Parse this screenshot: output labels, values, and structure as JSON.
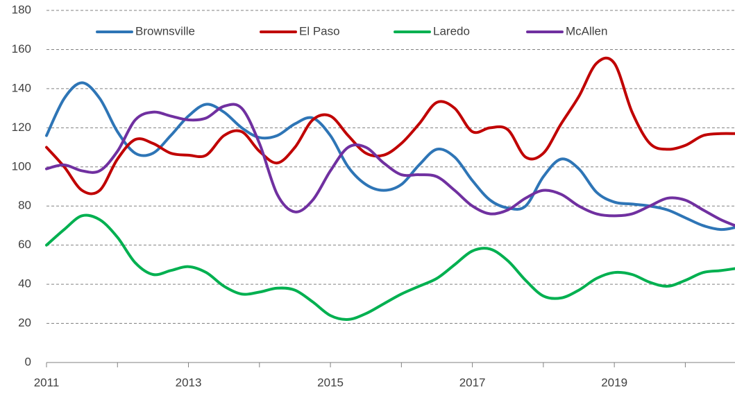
{
  "chart_data": {
    "type": "line",
    "x": [
      2011,
      2011.25,
      2011.5,
      2011.75,
      2012,
      2012.25,
      2012.5,
      2012.75,
      2013,
      2013.25,
      2013.5,
      2013.75,
      2014,
      2014.25,
      2014.5,
      2014.75,
      2015,
      2015.25,
      2015.5,
      2015.75,
      2016,
      2016.25,
      2016.5,
      2016.75,
      2017,
      2017.25,
      2017.5,
      2017.75,
      2018,
      2018.25,
      2018.5,
      2018.75,
      2019,
      2019.25,
      2019.5,
      2019.75,
      2020,
      2020.25,
      2020.5,
      2020.7
    ],
    "series": [
      {
        "name": "Brownsville",
        "color": "#2e75b6",
        "values": [
          116,
          135,
          143,
          135,
          118,
          107,
          107,
          116,
          126,
          132,
          128,
          120,
          115,
          116,
          122,
          125,
          116,
          100,
          91,
          88,
          91,
          101,
          109,
          105,
          93,
          83,
          79,
          80,
          95,
          104,
          99,
          87,
          82,
          81,
          80,
          78,
          74,
          70,
          68,
          69
        ]
      },
      {
        "name": "El Paso",
        "color": "#c00000",
        "values": [
          110,
          100,
          88,
          88,
          104,
          114,
          112,
          107,
          106,
          106,
          116,
          118,
          108,
          102,
          110,
          124,
          126,
          116,
          107,
          106,
          112,
          122,
          133,
          130,
          118,
          120,
          119,
          105,
          107,
          122,
          136,
          153,
          153,
          128,
          112,
          109,
          111,
          116,
          117,
          117
        ]
      },
      {
        "name": "Laredo",
        "color": "#00b050",
        "values": [
          60,
          68,
          75,
          73,
          64,
          51,
          45,
          47,
          49,
          46,
          39,
          35,
          36,
          38,
          37,
          31,
          24,
          22,
          25,
          30,
          35,
          39,
          43,
          50,
          57,
          58,
          52,
          42,
          34,
          33,
          37,
          43,
          46,
          45,
          41,
          39,
          42,
          46,
          47,
          48
        ]
      },
      {
        "name": "McAllen",
        "color": "#7030a0",
        "values": [
          99,
          101,
          98,
          98,
          108,
          124,
          128,
          126,
          124,
          125,
          131,
          130,
          112,
          86,
          77,
          83,
          98,
          110,
          110,
          102,
          96,
          96,
          95,
          88,
          80,
          76,
          78,
          84,
          88,
          86,
          80,
          76,
          75,
          76,
          80,
          84,
          83,
          78,
          73,
          70
        ]
      }
    ],
    "xlim": [
      2011,
      2020.7
    ],
    "xticks": [
      2011,
      2013,
      2015,
      2017,
      2019
    ],
    "xminorticks": [
      2012,
      2014,
      2016,
      2018,
      2020
    ],
    "ylim": [
      0,
      180
    ],
    "yticks": [
      0,
      20,
      40,
      60,
      80,
      100,
      120,
      140,
      160,
      180
    ],
    "grid": true,
    "legend": "top"
  }
}
